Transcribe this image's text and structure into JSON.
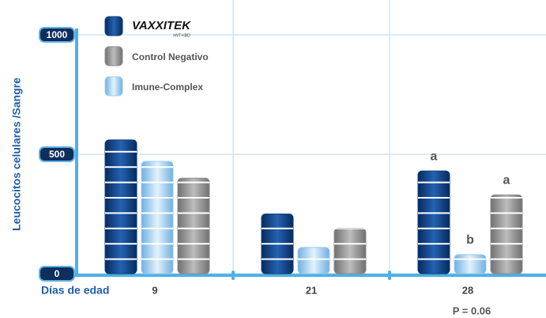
{
  "chart_data": {
    "type": "bar",
    "y_label": "Leucocitos celulares /Sangre",
    "x_label": "Días de edad",
    "categories": [
      "9",
      "21",
      "28"
    ],
    "series": [
      {
        "name": "VAXXITEK",
        "color": "#0b3c7c",
        "values": [
          560,
          250,
          430
        ],
        "labels": [
          null,
          null,
          "a"
        ]
      },
      {
        "name": "Imune-Complex",
        "color": "#9ccbee",
        "values": [
          470,
          110,
          80
        ],
        "labels": [
          null,
          null,
          "b"
        ]
      },
      {
        "name": "Control Negativo",
        "color": "#8c8c8c",
        "values": [
          400,
          190,
          330
        ],
        "labels": [
          null,
          null,
          "a"
        ]
      }
    ],
    "legend_order": [
      0,
      2,
      1
    ],
    "logo_subtitle": "HVT+IBD",
    "note": "P = 0.06",
    "ylim": [
      0,
      1000
    ],
    "yticks": [
      0,
      500,
      1000
    ],
    "grid": true
  }
}
